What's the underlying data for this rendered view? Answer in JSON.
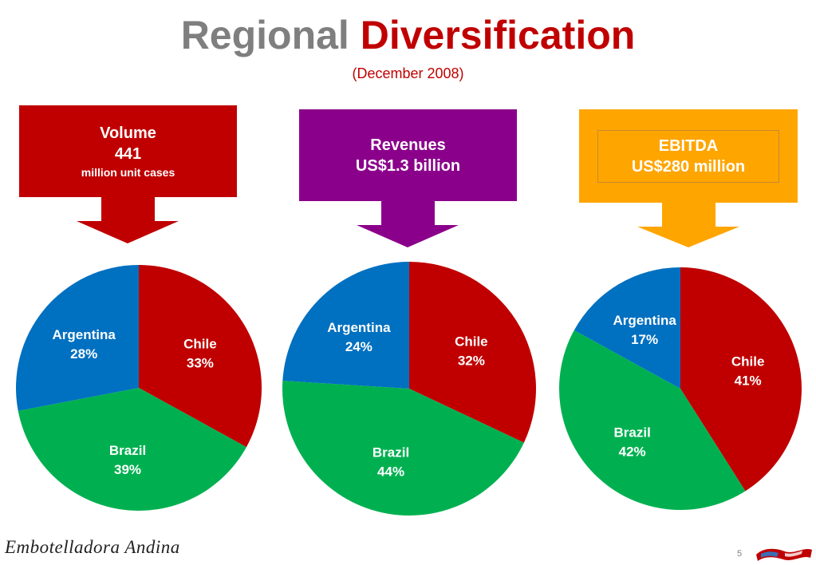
{
  "title": {
    "part1": "Regional",
    "part2": "Diversification"
  },
  "subtitle": "(December 2008)",
  "callouts": [
    {
      "lines": [
        "Volume",
        "441",
        "million unit cases"
      ],
      "color": "#c00000"
    },
    {
      "lines": [
        "Revenues",
        "US$1.3 billion"
      ],
      "color": "#8b008b"
    },
    {
      "lines": [
        "EBITDA",
        "US$280 million"
      ],
      "color": "#ffa500"
    }
  ],
  "chart_data": [
    {
      "type": "pie",
      "title": "Volume",
      "slices": [
        {
          "label": "Chile",
          "value": 33,
          "display": "33%",
          "color": "#c00000"
        },
        {
          "label": "Brazil",
          "value": 39,
          "display": "39%",
          "color": "#00b050"
        },
        {
          "label": "Argentina",
          "value": 28,
          "display": "28%",
          "color": "#0070c0"
        }
      ]
    },
    {
      "type": "pie",
      "title": "Revenues",
      "slices": [
        {
          "label": "Chile",
          "value": 32,
          "display": "32%",
          "color": "#c00000"
        },
        {
          "label": "Brazil",
          "value": 44,
          "display": "44%",
          "color": "#00b050"
        },
        {
          "label": "Argentina",
          "value": 24,
          "display": "24%",
          "color": "#0070c0"
        }
      ]
    },
    {
      "type": "pie",
      "title": "EBITDA",
      "slices": [
        {
          "label": "Chile",
          "value": 41,
          "display": "41%",
          "color": "#c00000"
        },
        {
          "label": "Brazil",
          "value": 42,
          "display": "42%",
          "color": "#00b050"
        },
        {
          "label": "Argentina",
          "value": 17,
          "display": "17%",
          "color": "#0070c0"
        }
      ]
    }
  ],
  "footer": {
    "logo_text": "Embotelladora Andina",
    "page_number": "5",
    "logo_icon": "flag-icon"
  }
}
